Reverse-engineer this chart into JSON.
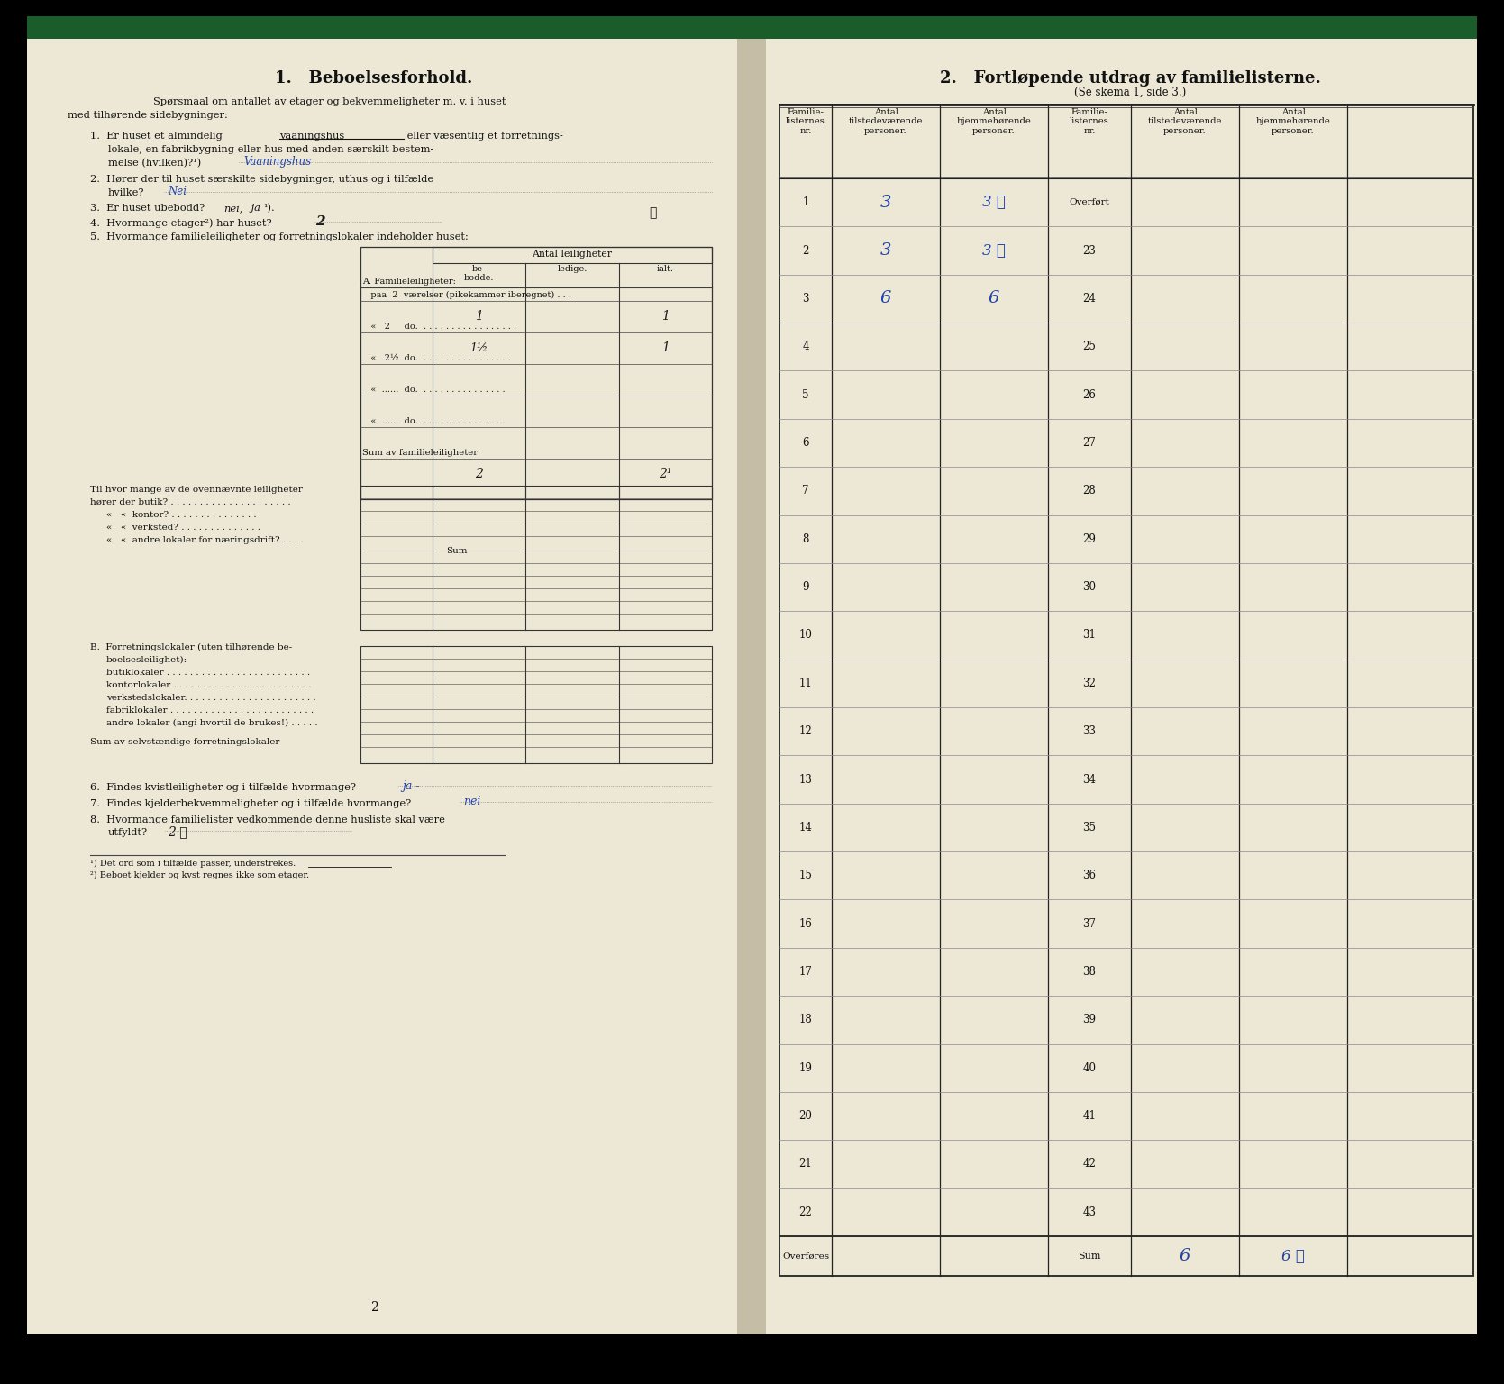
{
  "bg_color": "#ede8d5",
  "green_bar": "#1a5c2a",
  "text_color": "#111111",
  "blue_ink": "#2244aa",
  "dark_ink": "#1a1a1a",
  "title_left": "1.   Beboelsesforhold.",
  "title_right": "2.   Fortløpende utdrag av familielisterne.",
  "subtitle_right": "(Se skema 1, side 3.)",
  "row_numbers_left": [
    1,
    2,
    3,
    4,
    5,
    6,
    7,
    8,
    9,
    10,
    11,
    12,
    13,
    14,
    15,
    16,
    17,
    18,
    19,
    20,
    21,
    22
  ],
  "row_numbers_right": [
    "Overført",
    23,
    24,
    25,
    26,
    27,
    28,
    29,
    30,
    31,
    32,
    33,
    34,
    35,
    36,
    37,
    38,
    39,
    40,
    41,
    42,
    43
  ],
  "bottom_row_left": "Overføres",
  "bottom_row_right": "Sum",
  "bottom_val_col5": "6",
  "bottom_val_col6": "6 ✓",
  "hw_r1_tilst": "3",
  "hw_r1_hjemm": "3 ✓",
  "hw_r2_tilst": "3",
  "hw_r2_hjemm": "3 ✓",
  "hw_r3_tilst": "6",
  "hw_r3_hjemm": "6",
  "page_number": "2"
}
